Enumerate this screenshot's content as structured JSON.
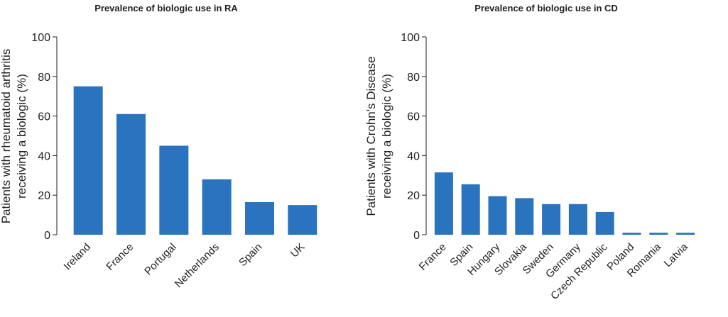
{
  "chart_data": [
    {
      "type": "bar",
      "title": "Prevalence of biologic use in RA",
      "ylabel": "Patients with rheumatoid arthritis receiving a biologic (%)",
      "ylabel_lines": [
        "Patients with rheumatoid arthritis",
        "receiving a biologic (%)"
      ],
      "xlabel": "",
      "categories": [
        "Ireland",
        "France",
        "Portugal",
        "Netherlands",
        "Spain",
        "UK"
      ],
      "values": [
        75,
        61,
        45,
        28,
        16.5,
        15
      ],
      "ylim": [
        0,
        100
      ],
      "yticks": [
        "0",
        "20",
        "40",
        "60",
        "80",
        "100"
      ],
      "grid": false,
      "bar_color": "#2a73be"
    },
    {
      "type": "bar",
      "title": "Prevalence of biologic use in CD",
      "ylabel": "Patients with Crohn's Disease receiving a biologic (%)",
      "ylabel_lines": [
        "Patients with Crohn's Disease",
        "receiving a biologic (%)"
      ],
      "xlabel": "",
      "categories": [
        "France",
        "Spain",
        "Hungary",
        "Slovakia",
        "Sweden",
        "Germany",
        "Czech Republic",
        "Poland",
        "Romania",
        "Latvia"
      ],
      "values": [
        31.5,
        25.5,
        19.5,
        18.5,
        15.5,
        15.5,
        11.5,
        1,
        1,
        1
      ],
      "ylim": [
        0,
        100
      ],
      "yticks": [
        "0",
        "20",
        "40",
        "60",
        "80",
        "100"
      ],
      "grid": false,
      "bar_color": "#2a73be"
    }
  ]
}
